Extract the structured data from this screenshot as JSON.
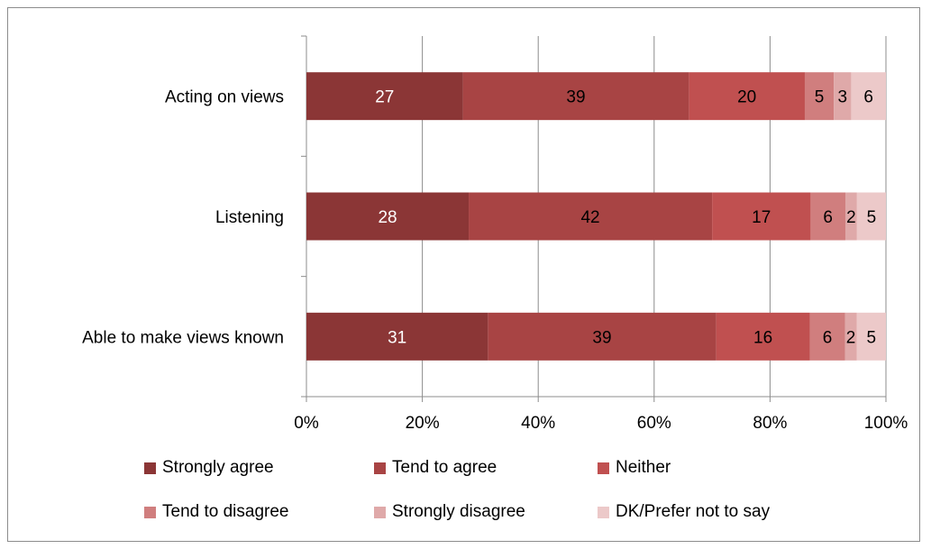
{
  "chart_data": {
    "type": "bar",
    "orientation": "horizontal",
    "stacked": true,
    "percent_stacked": true,
    "categories": [
      "Acting on views",
      "Listening",
      "Able to make views known"
    ],
    "series": [
      {
        "name": "Strongly agree",
        "values": [
          27,
          28,
          31
        ],
        "color": "#8b3636",
        "label_color": "#ffffff"
      },
      {
        "name": "Tend to agree",
        "values": [
          39,
          42,
          39
        ],
        "color": "#a84444",
        "label_color": "#000000"
      },
      {
        "name": "Neither",
        "values": [
          20,
          17,
          16
        ],
        "color": "#c05050",
        "label_color": "#000000"
      },
      {
        "name": "Tend to disagree",
        "values": [
          5,
          6,
          6
        ],
        "color": "#d07e7e",
        "label_color": "#000000"
      },
      {
        "name": "Strongly disagree",
        "values": [
          3,
          2,
          2
        ],
        "color": "#dfa9a9",
        "label_color": "#000000"
      },
      {
        "name": "DK/Prefer not to say",
        "values": [
          6,
          5,
          5
        ],
        "color": "#ecc9c9",
        "label_color": "#000000"
      }
    ],
    "x_ticks": [
      "0%",
      "20%",
      "40%",
      "60%",
      "80%",
      "100%"
    ],
    "xlim": [
      0,
      100
    ],
    "grid": true,
    "legend_position": "bottom",
    "title": "",
    "xlabel": "",
    "ylabel": ""
  }
}
